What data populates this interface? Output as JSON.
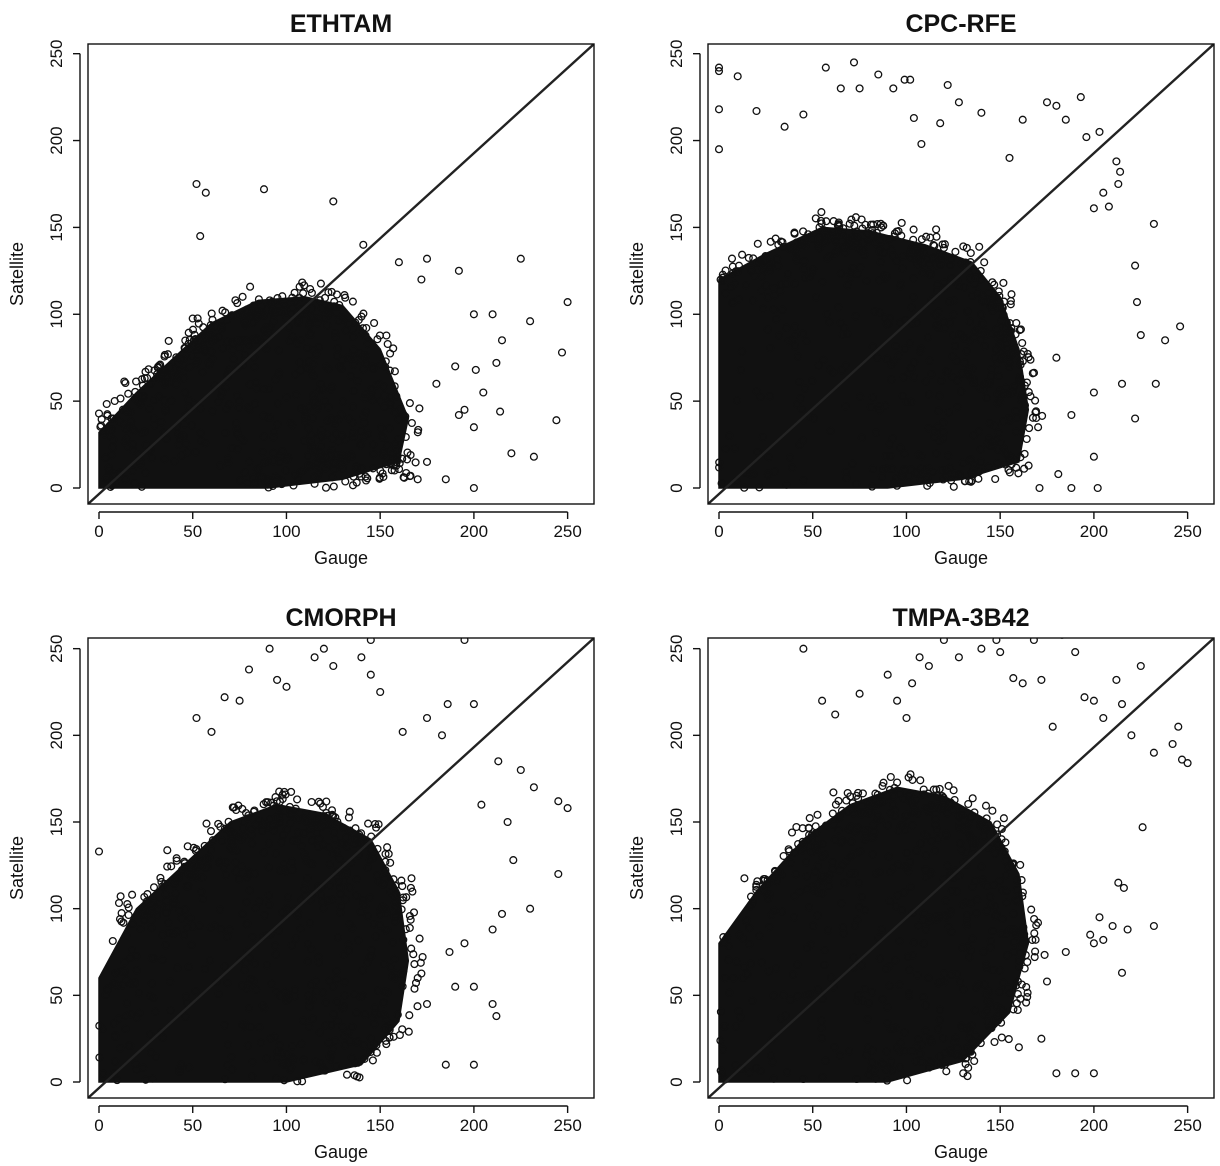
{
  "chart_data": [
    {
      "type": "scatter",
      "title": "ETHTAM",
      "xlabel": "Gauge",
      "ylabel": "Satellite",
      "xlim": [
        0,
        255
      ],
      "ylim": [
        0,
        255
      ],
      "xticks": [
        "0",
        "50",
        "100",
        "150",
        "200",
        "250"
      ],
      "yticks": [
        "0",
        "50",
        "100",
        "150",
        "200",
        "250"
      ],
      "reference_line": "1:1",
      "grid": false,
      "dense_cloud": [
        [
          0,
          0
        ],
        [
          0,
          32
        ],
        [
          20,
          55
        ],
        [
          40,
          75
        ],
        [
          60,
          95
        ],
        [
          85,
          108
        ],
        [
          110,
          110
        ],
        [
          130,
          105
        ],
        [
          150,
          80
        ],
        [
          165,
          40
        ],
        [
          160,
          15
        ],
        [
          130,
          5
        ],
        [
          90,
          0
        ]
      ],
      "outliers": [
        [
          52,
          175
        ],
        [
          57,
          170
        ],
        [
          88,
          172
        ],
        [
          125,
          165
        ],
        [
          54,
          145
        ],
        [
          141,
          140
        ],
        [
          160,
          130
        ],
        [
          175,
          132
        ],
        [
          172,
          120
        ],
        [
          192,
          125
        ],
        [
          225,
          132
        ],
        [
          200,
          100
        ],
        [
          230,
          96
        ],
        [
          210,
          100
        ],
        [
          215,
          85
        ],
        [
          250,
          107
        ],
        [
          247,
          78
        ],
        [
          190,
          70
        ],
        [
          201,
          68
        ],
        [
          212,
          72
        ],
        [
          180,
          60
        ],
        [
          195,
          45
        ],
        [
          192,
          42
        ],
        [
          205,
          55
        ],
        [
          214,
          44
        ],
        [
          220,
          20
        ],
        [
          232,
          18
        ],
        [
          244,
          39
        ],
        [
          200,
          35
        ],
        [
          185,
          5
        ],
        [
          200,
          0
        ],
        [
          170,
          5
        ],
        [
          175,
          15
        ]
      ]
    },
    {
      "type": "scatter",
      "title": "CPC-RFE",
      "xlabel": "Gauge",
      "ylabel": "Satellite",
      "xlim": [
        0,
        255
      ],
      "ylim": [
        0,
        255
      ],
      "xticks": [
        "0",
        "50",
        "100",
        "150",
        "200",
        "250"
      ],
      "yticks": [
        "0",
        "50",
        "100",
        "150",
        "200",
        "250"
      ],
      "reference_line": "1:1",
      "grid": false,
      "dense_cloud": [
        [
          0,
          0
        ],
        [
          0,
          120
        ],
        [
          25,
          135
        ],
        [
          55,
          150
        ],
        [
          80,
          148
        ],
        [
          110,
          140
        ],
        [
          135,
          130
        ],
        [
          150,
          110
        ],
        [
          160,
          80
        ],
        [
          165,
          45
        ],
        [
          160,
          15
        ],
        [
          130,
          5
        ],
        [
          90,
          0
        ]
      ],
      "outliers": [
        [
          0,
          242
        ],
        [
          0,
          240
        ],
        [
          0,
          218
        ],
        [
          0,
          195
        ],
        [
          10,
          237
        ],
        [
          20,
          217
        ],
        [
          35,
          208
        ],
        [
          45,
          215
        ],
        [
          57,
          242
        ],
        [
          65,
          230
        ],
        [
          72,
          245
        ],
        [
          75,
          230
        ],
        [
          85,
          238
        ],
        [
          93,
          230
        ],
        [
          99,
          235
        ],
        [
          102,
          235
        ],
        [
          104,
          213
        ],
        [
          108,
          198
        ],
        [
          118,
          210
        ],
        [
          122,
          232
        ],
        [
          128,
          222
        ],
        [
          140,
          216
        ],
        [
          155,
          190
        ],
        [
          162,
          212
        ],
        [
          175,
          222
        ],
        [
          180,
          220
        ],
        [
          185,
          212
        ],
        [
          193,
          225
        ],
        [
          196,
          202
        ],
        [
          203,
          205
        ],
        [
          205,
          170
        ],
        [
          212,
          188
        ],
        [
          214,
          182
        ],
        [
          213,
          175
        ],
        [
          222,
          128
        ],
        [
          232,
          152
        ],
        [
          200,
          161
        ],
        [
          208,
          162
        ],
        [
          223,
          107
        ],
        [
          225,
          88
        ],
        [
          238,
          85
        ],
        [
          246,
          93
        ],
        [
          233,
          60
        ],
        [
          215,
          60
        ],
        [
          222,
          40
        ],
        [
          200,
          55
        ],
        [
          180,
          75
        ],
        [
          181,
          8
        ],
        [
          188,
          0
        ],
        [
          171,
          0
        ],
        [
          200,
          18
        ],
        [
          202,
          0
        ],
        [
          188,
          42
        ]
      ]
    },
    {
      "type": "scatter",
      "title": "CMORPH",
      "xlabel": "Gauge",
      "ylabel": "Satellite",
      "xlim": [
        0,
        255
      ],
      "ylim": [
        0,
        255
      ],
      "xticks": [
        "0",
        "50",
        "100",
        "150",
        "200",
        "250"
      ],
      "yticks": [
        "0",
        "50",
        "100",
        "150",
        "200",
        "250"
      ],
      "reference_line": "1:1",
      "grid": false,
      "dense_cloud": [
        [
          0,
          0
        ],
        [
          0,
          60
        ],
        [
          20,
          100
        ],
        [
          45,
          125
        ],
        [
          70,
          150
        ],
        [
          95,
          160
        ],
        [
          120,
          155
        ],
        [
          145,
          140
        ],
        [
          160,
          110
        ],
        [
          165,
          70
        ],
        [
          160,
          35
        ],
        [
          140,
          10
        ],
        [
          100,
          0
        ]
      ],
      "outliers": [
        [
          0,
          133
        ],
        [
          52,
          210
        ],
        [
          60,
          202
        ],
        [
          67,
          222
        ],
        [
          75,
          220
        ],
        [
          80,
          238
        ],
        [
          91,
          250
        ],
        [
          95,
          232
        ],
        [
          100,
          228
        ],
        [
          115,
          245
        ],
        [
          120,
          250
        ],
        [
          125,
          240
        ],
        [
          140,
          245
        ],
        [
          145,
          255
        ],
        [
          145,
          235
        ],
        [
          150,
          225
        ],
        [
          162,
          202
        ],
        [
          175,
          210
        ],
        [
          183,
          200
        ],
        [
          195,
          255
        ],
        [
          186,
          218
        ],
        [
          200,
          218
        ],
        [
          213,
          185
        ],
        [
          225,
          180
        ],
        [
          232,
          170
        ],
        [
          245,
          162
        ],
        [
          250,
          158
        ],
        [
          204,
          160
        ],
        [
          218,
          150
        ],
        [
          221,
          128
        ],
        [
          230,
          100
        ],
        [
          245,
          120
        ],
        [
          215,
          97
        ],
        [
          210,
          88
        ],
        [
          195,
          80
        ],
        [
          187,
          75
        ],
        [
          190,
          55
        ],
        [
          200,
          55
        ],
        [
          210,
          45
        ],
        [
          212,
          38
        ],
        [
          200,
          10
        ],
        [
          185,
          10
        ],
        [
          175,
          45
        ],
        [
          170,
          60
        ]
      ]
    },
    {
      "type": "scatter",
      "title": "TMPA-3B42",
      "xlabel": "Gauge",
      "ylabel": "Satellite",
      "xlim": [
        0,
        255
      ],
      "ylim": [
        0,
        255
      ],
      "xticks": [
        "0",
        "50",
        "100",
        "150",
        "200",
        "250"
      ],
      "yticks": [
        "0",
        "50",
        "100",
        "150",
        "200",
        "250"
      ],
      "reference_line": "1:1",
      "grid": false,
      "dense_cloud": [
        [
          0,
          0
        ],
        [
          0,
          80
        ],
        [
          20,
          110
        ],
        [
          45,
          140
        ],
        [
          70,
          160
        ],
        [
          95,
          170
        ],
        [
          120,
          165
        ],
        [
          145,
          150
        ],
        [
          160,
          120
        ],
        [
          165,
          80
        ],
        [
          155,
          40
        ],
        [
          130,
          12
        ],
        [
          90,
          0
        ]
      ],
      "outliers": [
        [
          45,
          250
        ],
        [
          55,
          220
        ],
        [
          62,
          212
        ],
        [
          75,
          224
        ],
        [
          90,
          235
        ],
        [
          95,
          220
        ],
        [
          100,
          210
        ],
        [
          103,
          230
        ],
        [
          107,
          245
        ],
        [
          112,
          240
        ],
        [
          120,
          255
        ],
        [
          128,
          245
        ],
        [
          140,
          250
        ],
        [
          148,
          255
        ],
        [
          150,
          248
        ],
        [
          157,
          233
        ],
        [
          162,
          230
        ],
        [
          168,
          255
        ],
        [
          172,
          232
        ],
        [
          178,
          205
        ],
        [
          183,
          258
        ],
        [
          190,
          248
        ],
        [
          195,
          222
        ],
        [
          200,
          220
        ],
        [
          205,
          210
        ],
        [
          212,
          232
        ],
        [
          215,
          218
        ],
        [
          220,
          200
        ],
        [
          225,
          240
        ],
        [
          232,
          190
        ],
        [
          242,
          195
        ],
        [
          245,
          205
        ],
        [
          250,
          184
        ],
        [
          247,
          186
        ],
        [
          226,
          147
        ],
        [
          213,
          115
        ],
        [
          216,
          112
        ],
        [
          232,
          90
        ],
        [
          203,
          95
        ],
        [
          198,
          85
        ],
        [
          205,
          82
        ],
        [
          210,
          90
        ],
        [
          218,
          88
        ],
        [
          215,
          63
        ],
        [
          200,
          80
        ],
        [
          185,
          75
        ],
        [
          175,
          58
        ],
        [
          172,
          25
        ],
        [
          180,
          5
        ],
        [
          190,
          5
        ],
        [
          200,
          5
        ],
        [
          160,
          20
        ]
      ]
    }
  ]
}
